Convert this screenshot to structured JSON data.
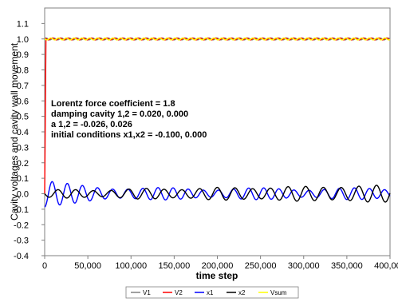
{
  "chart_data": {
    "type": "line",
    "title": "",
    "xlabel": "time step",
    "ylabel": "Cavity voltages and cavity wall movement",
    "xlim": [
      0,
      400000
    ],
    "ylim": [
      -0.4,
      1.2
    ],
    "xticks": [
      0,
      50000,
      100000,
      150000,
      200000,
      250000,
      300000,
      350000,
      400000
    ],
    "xtick_labels": [
      "0",
      "50,000",
      "100,000",
      "150,000",
      "200,000",
      "250,000",
      "300,000",
      "350,000",
      "400,000"
    ],
    "yticks": [
      -0.4,
      -0.3,
      -0.2,
      -0.1,
      0.0,
      0.1,
      0.2,
      0.3,
      0.4,
      0.5,
      0.6,
      0.7,
      0.8,
      0.9,
      1.0,
      1.1
    ],
    "ytick_labels": [
      "-0.4",
      "-0.3",
      "-0.2",
      "-0.1",
      "0.0",
      "0.1",
      "0.2",
      "0.3",
      "0.4",
      "0.5",
      "0.6",
      "0.7",
      "0.8",
      "0.9",
      "1.0",
      "1.1"
    ],
    "grid": false,
    "legend_position": "bottom",
    "series": [
      {
        "name": "V1",
        "color": "#808080",
        "approx": "near 1.0 throughout, small ripple"
      },
      {
        "name": "V2",
        "color": "#ff0000",
        "approx": "rises from 0 to ~1.0 at start, then ~1.0 with small ripple"
      },
      {
        "name": "x1",
        "color": "#0000ff",
        "x": [
          0,
          5000,
          12000,
          20000,
          30000,
          50000,
          100000,
          200000,
          300000,
          400000
        ],
        "y": [
          -0.1,
          -0.05,
          0.09,
          0.06,
          -0.04,
          0.03,
          -0.03,
          -0.03,
          -0.03,
          0.04
        ],
        "approx": "oscillation, period ~17000, amplitude ~0.09 decaying to ~0.03, envelope modulated"
      },
      {
        "name": "x2",
        "color": "#000000",
        "x": [
          0,
          20000,
          50000,
          100000,
          200000,
          300000,
          400000
        ],
        "y": [
          0.0,
          -0.02,
          0.03,
          -0.04,
          0.04,
          -0.04,
          0.05
        ],
        "approx": "oscillation, period ~20000, amplitude growing from ~0.02 to ~0.05"
      },
      {
        "name": "Vsum",
        "color": "#ffff00",
        "approx": "near 1.0 throughout, small ripple"
      }
    ],
    "annotations": [
      "Lorentz force coefficient = 1.8",
      "damping cavity 1,2 =  0.020,   0.000",
      "a 1,2 =  -0.026,  0.026",
      "initial conditions x1,x2 =  -0.100,   0.000"
    ]
  }
}
